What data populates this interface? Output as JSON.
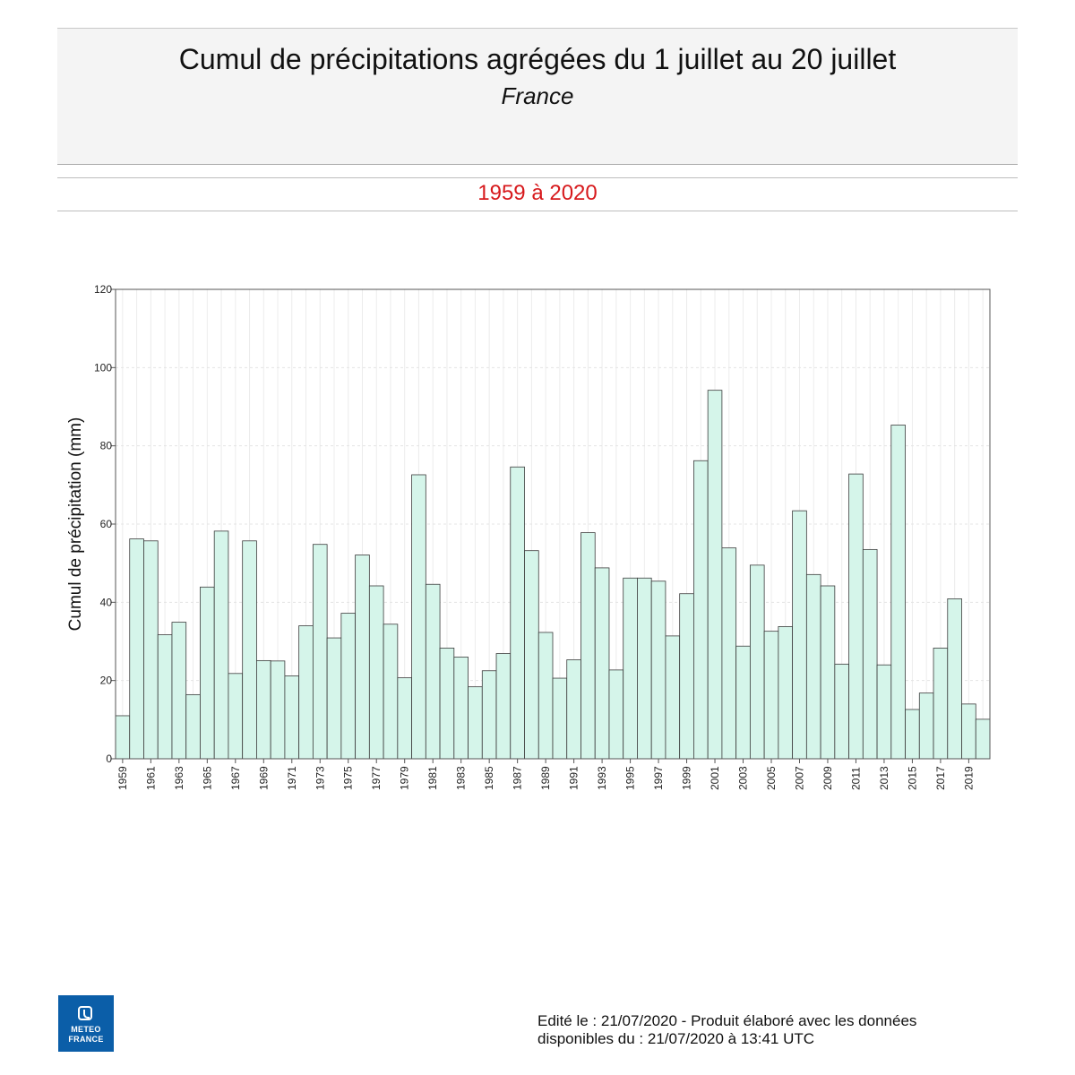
{
  "header": {
    "title": "Cumul de précipitations agrégées du 1 juillet au 20 juillet",
    "subtitle": "France",
    "period": "1959 à 2020"
  },
  "chart_data": {
    "type": "bar",
    "ylabel": "Cumul de précipitation (mm)",
    "xlabel": "",
    "ylim": [
      0,
      120
    ],
    "yticks": [
      0,
      20,
      40,
      60,
      80,
      100,
      120
    ],
    "grid": true,
    "legend": "none",
    "bar_color": "#d5f5ea",
    "bar_edge_color": "#3c3c3c",
    "categories": [
      "1959",
      "1960",
      "1961",
      "1962",
      "1963",
      "1964",
      "1965",
      "1966",
      "1967",
      "1968",
      "1969",
      "1970",
      "1971",
      "1972",
      "1973",
      "1974",
      "1975",
      "1976",
      "1977",
      "1978",
      "1979",
      "1980",
      "1981",
      "1982",
      "1983",
      "1984",
      "1985",
      "1986",
      "1987",
      "1988",
      "1989",
      "1990",
      "1991",
      "1992",
      "1993",
      "1994",
      "1995",
      "1996",
      "1997",
      "1998",
      "1999",
      "2000",
      "2001",
      "2002",
      "2003",
      "2004",
      "2005",
      "2006",
      "2007",
      "2008",
      "2009",
      "2010",
      "2011",
      "2012",
      "2013",
      "2014",
      "2015",
      "2016",
      "2017",
      "2018",
      "2019",
      "2020"
    ],
    "xtick_labels": [
      "1959",
      "1961",
      "1963",
      "1965",
      "1967",
      "1969",
      "1971",
      "1973",
      "1975",
      "1977",
      "1979",
      "1981",
      "1983",
      "1985",
      "1987",
      "1989",
      "1991",
      "1993",
      "1995",
      "1997",
      "1999",
      "2001",
      "2003",
      "2005",
      "2007",
      "2009",
      "2011",
      "2013",
      "2015",
      "2017",
      "2019"
    ],
    "values": [
      11.0,
      56.2,
      55.7,
      31.7,
      34.9,
      16.4,
      43.9,
      58.2,
      21.8,
      55.7,
      25.1,
      25.0,
      21.2,
      34.0,
      54.8,
      30.9,
      37.2,
      52.1,
      44.2,
      34.4,
      20.7,
      72.6,
      44.6,
      28.3,
      26.0,
      18.4,
      22.5,
      26.9,
      74.6,
      53.2,
      32.3,
      20.6,
      25.3,
      57.8,
      48.8,
      22.7,
      46.2,
      46.2,
      45.4,
      31.4,
      42.2,
      76.2,
      94.2,
      53.9,
      28.8,
      49.5,
      32.6,
      33.8,
      63.4,
      47.1,
      44.2,
      24.2,
      72.8,
      53.5,
      24.0,
      85.3,
      12.6,
      16.8,
      28.3,
      40.9,
      14.0,
      10.1
    ]
  },
  "footer": {
    "line1": "Edité le : 21/07/2020 - Produit élaboré avec les données",
    "line2": "disponibles du : 21/07/2020 à 13:41 UTC"
  },
  "logo": {
    "line1": "METEO",
    "line2": "FRANCE",
    "color": "#0b5ea8"
  }
}
